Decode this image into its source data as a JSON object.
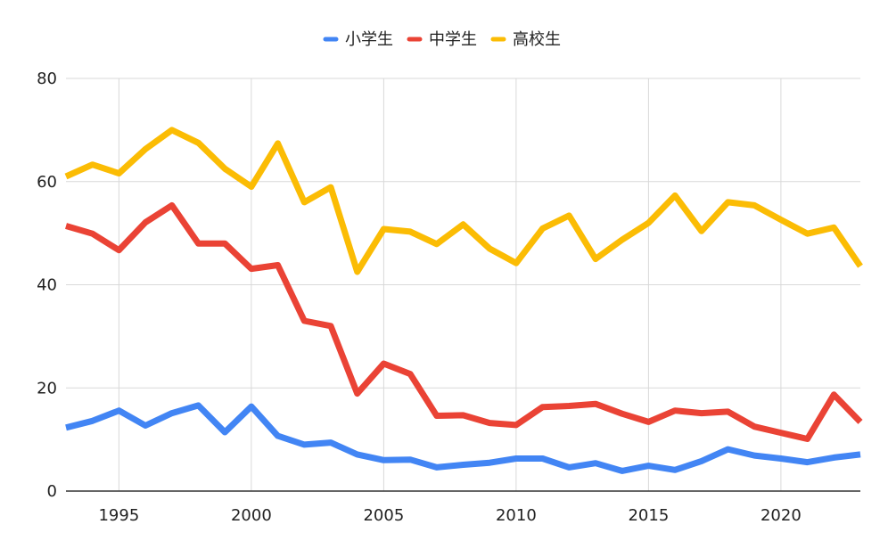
{
  "chart_data": {
    "type": "line",
    "title": "",
    "xlabel": "",
    "ylabel": "",
    "x": [
      1993,
      1994,
      1995,
      1996,
      1997,
      1998,
      1999,
      2000,
      2001,
      2002,
      2003,
      2004,
      2005,
      2006,
      2007,
      2008,
      2009,
      2010,
      2011,
      2012,
      2013,
      2014,
      2015,
      2016,
      2017,
      2018,
      2019,
      2020,
      2021,
      2022,
      2023
    ],
    "xlim": [
      1993,
      2023
    ],
    "ylim": [
      0,
      80
    ],
    "x_ticks": [
      1995,
      2000,
      2005,
      2010,
      2015,
      2020
    ],
    "y_ticks": [
      0,
      20,
      40,
      60,
      80
    ],
    "grid": "on",
    "legend_position": "top-center",
    "series": [
      {
        "name": "小学生",
        "color": "#4285f4",
        "values": [
          12.3,
          13.6,
          15.6,
          12.7,
          15.1,
          16.6,
          11.4,
          16.4,
          10.7,
          9.0,
          9.4,
          7.1,
          6.0,
          6.1,
          4.6,
          5.1,
          5.5,
          6.3,
          6.3,
          4.6,
          5.4,
          3.9,
          4.9,
          4.1,
          5.8,
          8.1,
          6.9,
          6.3,
          5.6,
          6.5,
          7.1
        ]
      },
      {
        "name": "中学生",
        "color": "#ea4335",
        "values": [
          51.4,
          49.9,
          46.7,
          52.1,
          55.4,
          48.0,
          48.0,
          43.1,
          43.8,
          33.0,
          32.0,
          18.9,
          24.7,
          22.7,
          14.6,
          14.7,
          13.2,
          12.8,
          16.3,
          16.5,
          16.9,
          15.0,
          13.4,
          15.6,
          15.1,
          15.4,
          12.5,
          11.3,
          10.1,
          18.7,
          13.4
        ]
      },
      {
        "name": "高校生",
        "color": "#fbbc04",
        "values": [
          61.0,
          63.3,
          61.6,
          66.3,
          70.0,
          67.5,
          62.5,
          59.0,
          67.4,
          56.0,
          58.9,
          42.5,
          50.8,
          50.3,
          47.9,
          51.7,
          47.0,
          44.2,
          50.9,
          53.4,
          45.0,
          48.7,
          52.0,
          57.3,
          50.4,
          56.0,
          55.4,
          52.6,
          49.9,
          51.1,
          43.6
        ]
      }
    ]
  }
}
